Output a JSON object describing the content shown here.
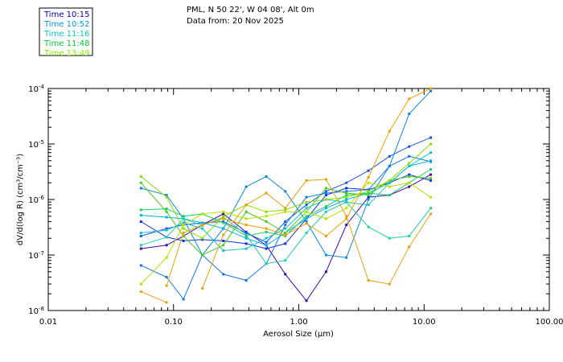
{
  "chart_data": {
    "type": "line",
    "title": "PML, N 50 22', W 04 08', Alt 0m",
    "subtitle": "Data from: 20 Nov 2025",
    "xlabel": "Aerosol Size (μm)",
    "ylabel": "dV/d(log R) (cm³/cm⁻³)",
    "xscale": "log",
    "yscale": "log",
    "xlim": [
      0.01,
      100
    ],
    "ylim": [
      1e-08,
      0.0001
    ],
    "x_ticks": [
      "0.01",
      "0.10",
      "1.00",
      "10.00",
      "100.00"
    ],
    "y_ticks": [
      {
        "base": "10",
        "exp": "-8"
      },
      {
        "base": "10",
        "exp": "-7"
      },
      {
        "base": "10",
        "exp": "-6"
      },
      {
        "base": "10",
        "exp": "-5"
      },
      {
        "base": "10",
        "exp": "-4"
      }
    ],
    "x": [
      0.055,
      0.088,
      0.12,
      0.17,
      0.25,
      0.38,
      0.55,
      0.78,
      1.15,
      1.65,
      2.4,
      3.6,
      5.3,
      7.6,
      11.3
    ],
    "legend": [
      "Time 10:15",
      "Time 10:52",
      "Time 11:16",
      "Time 11:48",
      "Time 13:49"
    ],
    "legend_colors": [
      "#0000cc",
      "#0099ee",
      "#00ccbb",
      "#00cc33",
      "#88ee00"
    ],
    "series": [
      {
        "name": "s1",
        "color": "#3a0aa8",
        "values": [
          1.3e-07,
          1.5e-07,
          2.2e-07,
          3.5e-07,
          5.5e-07,
          2.6e-07,
          1.5e-07,
          4.5e-08,
          1.5e-08,
          5e-08,
          3.5e-07,
          1.1e-06,
          1.2e-06,
          1.7e-06,
          2.8e-06
        ]
      },
      {
        "name": "s2",
        "color": "#1030d8",
        "values": [
          4e-07,
          2.1e-07,
          1.8e-07,
          1.9e-07,
          1.8e-07,
          1.6e-07,
          1.3e-07,
          1.6e-07,
          4.5e-07,
          1.2e-06,
          1.6e-06,
          1.5e-06,
          2e-06,
          2.8e-06,
          2.2e-06
        ]
      },
      {
        "name": "s3",
        "color": "#1a55e0",
        "values": [
          2.2e-07,
          3e-07,
          3.5e-07,
          3.8e-07,
          4e-07,
          2.5e-07,
          1.7e-07,
          4e-07,
          8e-07,
          1.4e-06,
          2e-06,
          3.3e-06,
          6e-06,
          9e-06,
          1.3e-05
        ]
      },
      {
        "name": "s4",
        "color": "#1575e8",
        "values": [
          6.5e-08,
          4e-08,
          1.6e-08,
          1e-07,
          4.5e-08,
          3.5e-08,
          7e-08,
          3.5e-07,
          1.1e-06,
          1.3e-06,
          1.4e-06,
          1.5e-06,
          4e-06,
          6e-06,
          4.8e-06
        ]
      },
      {
        "name": "s5",
        "color": "#0a8ad8",
        "values": [
          1.6e-06,
          1.2e-06,
          4.5e-07,
          1e-07,
          3e-07,
          1.7e-06,
          2.6e-06,
          1.4e-06,
          4e-07,
          1e-07,
          9e-08,
          1e-06,
          4e-06,
          3.5e-05,
          9e-05
        ]
      },
      {
        "name": "s6",
        "color": "#00b2e2",
        "values": [
          5.2e-07,
          4.8e-07,
          4.5e-07,
          3.8e-07,
          3e-07,
          2e-07,
          1.5e-07,
          2.5e-07,
          4.5e-07,
          7e-07,
          1e-06,
          1.3e-06,
          2e-06,
          4e-06,
          5e-06
        ]
      },
      {
        "name": "s7",
        "color": "#12c2c8",
        "values": [
          2.5e-07,
          2.8e-07,
          3.8e-07,
          3e-07,
          1.2e-07,
          1.3e-07,
          2e-07,
          3e-07,
          7e-07,
          1e-06,
          9e-07,
          8e-07,
          2e-06,
          4e-06,
          7e-06
        ]
      },
      {
        "name": "s8",
        "color": "#20ccaa",
        "values": [
          1.5e-07,
          2.1e-07,
          4.5e-07,
          3.4e-07,
          4.8e-07,
          2.3e-07,
          7e-08,
          8e-08,
          2.5e-07,
          6e-07,
          9e-07,
          3.2e-07,
          2e-07,
          2.2e-07,
          7e-07
        ]
      },
      {
        "name": "s9",
        "color": "#22cc66",
        "values": [
          6.5e-07,
          6.8e-07,
          5e-07,
          5.5e-07,
          3.8e-07,
          2.2e-07,
          2.6e-07,
          2.2e-07,
          5e-07,
          7.5e-07,
          1.2e-06,
          1.3e-06,
          1.2e-06,
          2e-06,
          3.5e-06
        ]
      },
      {
        "name": "s10",
        "color": "#44cc22",
        "values": [
          2e-06,
          6e-07,
          2.2e-07,
          1e-07,
          1.5e-07,
          6e-07,
          4e-07,
          2.5e-07,
          6e-07,
          1.6e-06,
          1.3e-06,
          1.2e-06,
          2.2e-06,
          2.6e-06,
          2.4e-06
        ]
      },
      {
        "name": "s11",
        "color": "#88dd00",
        "values": [
          2.6e-06,
          1.1e-06,
          3e-07,
          2e-07,
          5e-07,
          8e-07,
          6e-07,
          6.5e-07,
          9e-07,
          1e-06,
          1.1e-06,
          1.4e-06,
          2.2e-06,
          4.5e-06,
          1e-05
        ]
      },
      {
        "name": "s12",
        "color": "#b8e000",
        "values": [
          3e-08,
          9e-08,
          3.5e-07,
          5.5e-07,
          6e-07,
          4.5e-07,
          5e-07,
          6e-07,
          6e-07,
          4.5e-07,
          7e-07,
          2e-06,
          1.7e-06,
          2e-06,
          1.1e-06
        ]
      },
      {
        "name": "s13",
        "color": "#e8a010",
        "values": [
          2.2e-08,
          1.4e-08,
          null,
          2.5e-08,
          2.3e-07,
          8e-07,
          1.3e-06,
          7e-07,
          2.2e-06,
          2.3e-06,
          5e-07,
          3.5e-08,
          3e-08,
          1.4e-07,
          5.5e-07
        ]
      },
      {
        "name": "s14",
        "color": "#f0a000",
        "values": [
          null,
          2.8e-08,
          2.5e-07,
          3.5e-07,
          4.5e-07,
          3.5e-07,
          3e-07,
          2.3e-07,
          3.7e-07,
          2.2e-07,
          4.5e-07,
          2.5e-06,
          1.7e-05,
          6.5e-05,
          0.000105
        ]
      }
    ]
  }
}
